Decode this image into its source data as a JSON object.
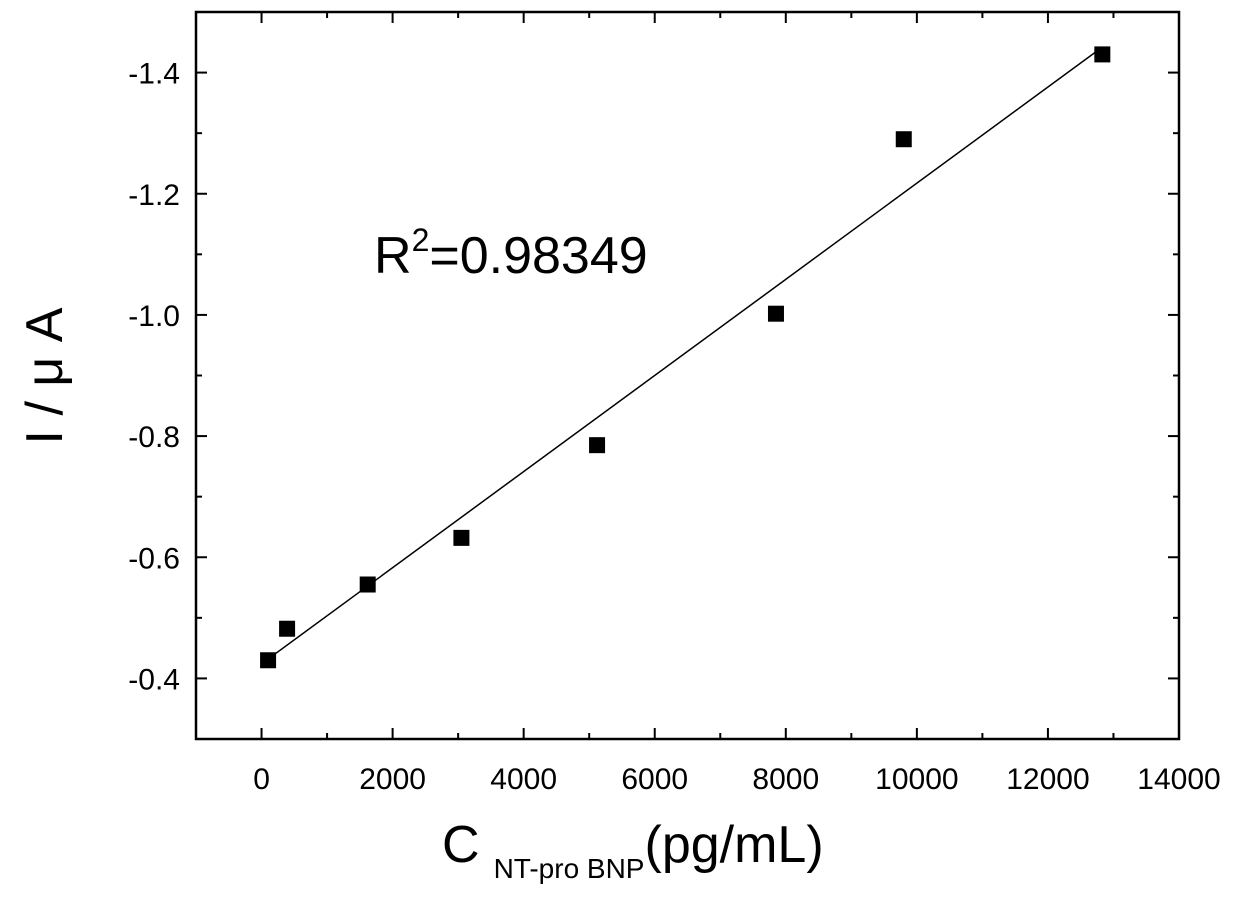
{
  "chart_data": {
    "type": "scatter",
    "xlabel": "C",
    "xlabel_subscript": "NT-pro BNP",
    "xlabel_unit": "(pg/mL)",
    "ylabel": "I / μ A",
    "annotation": {
      "base": "R",
      "superscript": "2",
      "rest": "=0.98349"
    },
    "xlim": [
      -1000,
      14000
    ],
    "ylim": [
      -0.3,
      -1.5
    ],
    "x_ticks": [
      0,
      2000,
      4000,
      6000,
      8000,
      10000,
      12000,
      14000
    ],
    "x_tick_labels": [
      "0",
      "2000",
      "4000",
      "6000",
      "8000",
      "10000",
      "12000",
      "14000"
    ],
    "y_ticks": [
      -0.4,
      -0.6,
      -0.8,
      -1.0,
      -1.2,
      -1.4
    ],
    "y_tick_labels": [
      "-0.4",
      "-0.6",
      "-0.8",
      "-1.0",
      "-1.2",
      "-1.4"
    ],
    "series": [
      {
        "marker": "square",
        "color": "#000000",
        "x": [
          100,
          390,
          1620,
          3050,
          5120,
          7850,
          9800,
          12830
        ],
        "y": [
          -0.43,
          -0.482,
          -0.555,
          -0.632,
          -0.785,
          -1.002,
          -1.29,
          -1.43
        ]
      }
    ],
    "fit_line": {
      "x": [
        50,
        12830
      ],
      "y": [
        -0.428,
        -1.442
      ]
    },
    "grid": false,
    "legend": "none"
  }
}
